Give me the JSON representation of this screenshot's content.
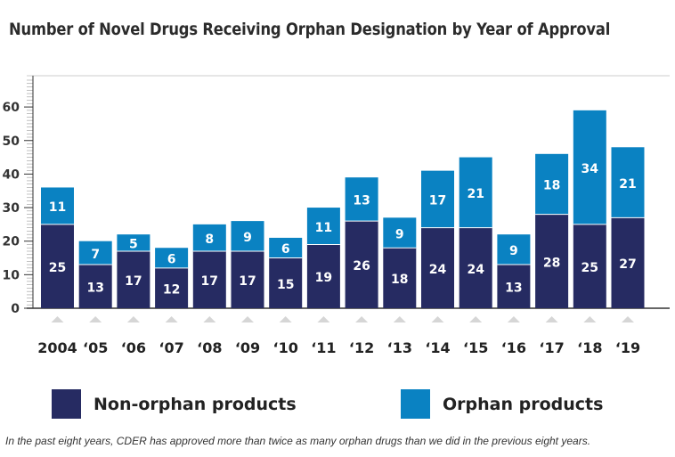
{
  "colors": {
    "non_orphan": "#262b62",
    "orphan": "#0a82c2",
    "axis": "#333333",
    "gridline": "#cccccc",
    "marker": "#d6d6d6"
  },
  "legend": {
    "non_orphan_label": "Non-orphan products",
    "orphan_label": "Orphan products"
  },
  "caption": "In the past eight years, CDER has approved more than twice as many orphan drugs than we did in the previous eight years.",
  "chart_data": {
    "type": "bar",
    "stacked": true,
    "title": "Number of Novel Drugs Receiving Orphan Designation by Year of Approval",
    "xlabel": "",
    "ylabel": "",
    "categories": [
      "2004",
      "‘05",
      "‘06",
      "‘07",
      "‘08",
      "‘09",
      "‘10",
      "‘11",
      "‘12",
      "‘13",
      "‘14",
      "‘15",
      "‘16",
      "‘17",
      "‘18",
      "‘19"
    ],
    "series": [
      {
        "name": "Non-orphan products",
        "values": [
          25,
          13,
          17,
          12,
          17,
          17,
          15,
          19,
          26,
          18,
          24,
          24,
          13,
          28,
          25,
          27
        ]
      },
      {
        "name": "Orphan products",
        "values": [
          11,
          7,
          5,
          6,
          8,
          9,
          6,
          11,
          13,
          9,
          17,
          21,
          9,
          18,
          34,
          21
        ]
      }
    ],
    "y_ticks": [
      0,
      10,
      20,
      30,
      40,
      50,
      60
    ],
    "ylim": [
      0,
      68
    ],
    "grid": false
  }
}
